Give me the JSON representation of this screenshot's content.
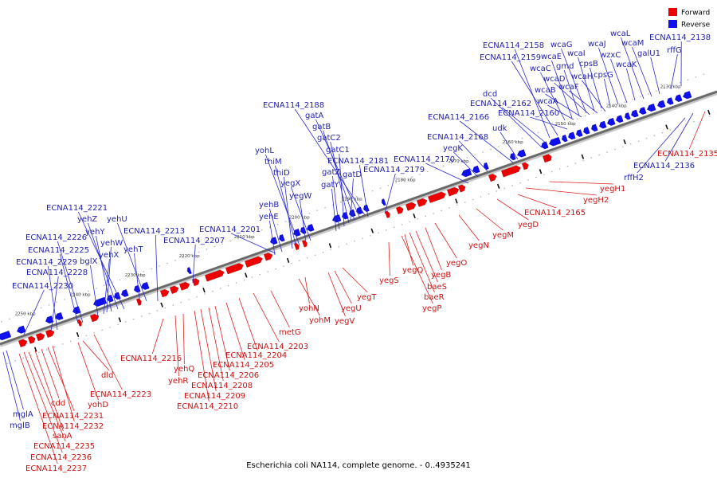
{
  "caption": "Escherichia coli NA114, complete genome. - 0..4935241",
  "legend": {
    "forward_label": "Forward",
    "reverse_label": "Reverse",
    "forward_color": "#ee0000",
    "reverse_color": "#1010ee"
  },
  "ticks": [
    "2130 kbp",
    "2140 kbp",
    "2150 kbp",
    "2160 kbp",
    "2170 kbp",
    "2180 kbp",
    "2190 kbp",
    "2200 kbp",
    "2210 kbp",
    "2220 kbp",
    "2230 kbp",
    "2240 kbp",
    "2250 kbp"
  ],
  "reverse_labels": [
    "ECNA114_2138",
    "rffG",
    "galU1",
    "wcaM",
    "wcaL",
    "wcaK",
    "wzxC",
    "wcaJ",
    "cpsG",
    "cpsB",
    "wcaI",
    "wcaG",
    "gmd",
    "wcaE",
    "wcaH",
    "wcaF",
    "wcaC",
    "wcaD",
    "wcaB",
    "wcaA",
    "ECNA114_2158",
    "ECNA114_2159",
    "ECNA114_2160",
    "ECNA114_2162",
    "dcd",
    "udk",
    "ECNA114_2166",
    "ECNA114_2168",
    "yegK",
    "ECNA114_2170",
    "ECNA114_2179",
    "ECNA114_2181",
    "ECNA114_2188",
    "gatA",
    "gatB",
    "gatC2",
    "gatC1",
    "gatD",
    "gatZ",
    "gatY",
    "yegX",
    "yegW",
    "yohL",
    "thiM",
    "thiD",
    "yehB",
    "yehE",
    "ECNA114_2201",
    "ECNA114_2207",
    "ECNA114_2213",
    "yehU",
    "yehT",
    "ECNA114_2221",
    "yehZ",
    "yehY",
    "yehW",
    "yehX",
    "bglX",
    "ECNA114_2226",
    "ECNA114_2225",
    "ECNA114_2229",
    "ECNA114_2228",
    "ECNA114_2230",
    "mglA",
    "mglB",
    "rffH2",
    "ECNA114_2136"
  ],
  "forward_labels": [
    "ECNA114_2135",
    "yegH1",
    "yegH2",
    "ECNA114_2165",
    "yegD",
    "yegM",
    "yegN",
    "yegO",
    "yegB",
    "yegQ",
    "baeS",
    "baeR",
    "yegP",
    "yegS",
    "yegT",
    "yegU",
    "yegV",
    "yohN",
    "yohM",
    "metG",
    "ECNA114_2203",
    "ECNA114_2204",
    "ECNA114_2205",
    "ECNA114_2206",
    "ECNA114_2208",
    "ECNA114_2209",
    "ECNA114_2210",
    "yehQ",
    "yehR",
    "ECNA114_2216",
    "ECNA114_2223",
    "dld",
    "yohD",
    "cdd",
    "ECNA114_2231",
    "ECNA114_2232",
    "sanA",
    "ECNA114_2235",
    "ECNA114_2236",
    "ECNA114_2237"
  ]
}
